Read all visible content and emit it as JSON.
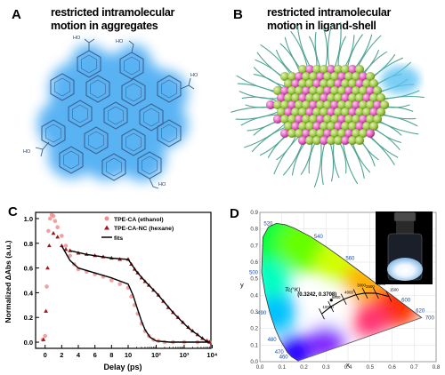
{
  "panelA": {
    "label": "A",
    "title_line1": "restricted intramolecular",
    "title_line2": "motion in aggregates",
    "group_label": "HO"
  },
  "panelB": {
    "label": "B",
    "title_line1": "restricted intramolecular",
    "title_line2": "motion in ligand-shell"
  },
  "panelC": {
    "label": "C",
    "chart_data": {
      "type": "scatter",
      "xlabel": "Delay (ps)",
      "ylabel": "Normalized ΔAbs (a.u.)",
      "ylim": [
        -0.05,
        1.05
      ],
      "x_ticks_linear": [
        "0",
        "2",
        "4",
        "6",
        "8",
        "10"
      ],
      "x_ticks_log": [
        "10²",
        "10³",
        "10⁴"
      ],
      "y_ticks": [
        "0.0",
        "0.2",
        "0.4",
        "0.6",
        "0.8",
        "1.0"
      ],
      "legend": [
        "TPE-CA (ethanol)",
        "TPE-CA-NC (hexane)",
        "fits"
      ],
      "series": [
        {
          "name": "TPE-CA (ethanol)",
          "color": "#f08f8f",
          "points": [
            [
              -0.3,
              0.02
            ],
            [
              0,
              0.05
            ],
            [
              0.2,
              0.45
            ],
            [
              0.4,
              0.9
            ],
            [
              0.6,
              1.0
            ],
            [
              0.8,
              1.03
            ],
            [
              1.0,
              1.02
            ],
            [
              1.2,
              0.98
            ],
            [
              1.5,
              0.93
            ],
            [
              2,
              0.86
            ],
            [
              2.5,
              0.78
            ],
            [
              3,
              0.7
            ],
            [
              3.5,
              0.63
            ],
            [
              4,
              0.59
            ],
            [
              5,
              0.57
            ],
            [
              6,
              0.55
            ],
            [
              7,
              0.53
            ],
            [
              8,
              0.5
            ],
            [
              9,
              0.47
            ],
            [
              10,
              0.44
            ],
            [
              13,
              0.37
            ],
            [
              17,
              0.3
            ],
            [
              22,
              0.23
            ],
            [
              30,
              0.15
            ],
            [
              40,
              0.09
            ],
            [
              55,
              0.05
            ],
            [
              80,
              0.02
            ],
            [
              120,
              0.01
            ],
            [
              200,
              0.0
            ],
            [
              400,
              0.0
            ],
            [
              1000,
              0.0
            ],
            [
              3000,
              0.0
            ],
            [
              8000,
              0.0
            ]
          ]
        },
        {
          "name": "TPE-CA-NC (hexane)",
          "color": "#a0141c",
          "points": [
            [
              -0.2,
              0.02
            ],
            [
              0.1,
              0.25
            ],
            [
              0.3,
              0.6
            ],
            [
              0.5,
              0.78
            ],
            [
              1,
              0.88
            ],
            [
              1.5,
              0.85
            ],
            [
              2,
              0.78
            ],
            [
              2.5,
              0.75
            ],
            [
              3,
              0.74
            ],
            [
              4,
              0.72
            ],
            [
              5,
              0.71
            ],
            [
              6,
              0.7
            ],
            [
              7,
              0.69
            ],
            [
              8,
              0.68
            ],
            [
              9,
              0.67
            ],
            [
              10,
              0.67
            ],
            [
              13,
              0.63
            ],
            [
              17,
              0.59
            ],
            [
              22,
              0.56
            ],
            [
              30,
              0.52
            ],
            [
              40,
              0.49
            ],
            [
              55,
              0.46
            ],
            [
              80,
              0.42
            ],
            [
              120,
              0.38
            ],
            [
              180,
              0.33
            ],
            [
              270,
              0.28
            ],
            [
              400,
              0.24
            ],
            [
              600,
              0.2
            ],
            [
              900,
              0.16
            ],
            [
              1400,
              0.12
            ],
            [
              2000,
              0.09
            ],
            [
              3000,
              0.06
            ],
            [
              4500,
              0.03
            ],
            [
              6500,
              0.01
            ],
            [
              8000,
              0.0
            ]
          ]
        }
      ],
      "fits": [
        {
          "name": "fit-ethanol",
          "points": [
            [
              2,
              0.78
            ],
            [
              3,
              0.66
            ],
            [
              4,
              0.6
            ],
            [
              6,
              0.56
            ],
            [
              8,
              0.52
            ],
            [
              10,
              0.47
            ],
            [
              15,
              0.38
            ],
            [
              20,
              0.29
            ],
            [
              30,
              0.17
            ],
            [
              40,
              0.1
            ],
            [
              60,
              0.04
            ],
            [
              100,
              0.01
            ],
            [
              300,
              0.0
            ],
            [
              8000,
              0.0
            ]
          ]
        },
        {
          "name": "fit-hexane",
          "points": [
            [
              3,
              0.74
            ],
            [
              5,
              0.71
            ],
            [
              8,
              0.68
            ],
            [
              10,
              0.67
            ],
            [
              20,
              0.57
            ],
            [
              50,
              0.47
            ],
            [
              100,
              0.4
            ],
            [
              200,
              0.32
            ],
            [
              400,
              0.24
            ],
            [
              800,
              0.17
            ],
            [
              1500,
              0.11
            ],
            [
              3000,
              0.06
            ],
            [
              6000,
              0.01
            ],
            [
              8000,
              0.0
            ]
          ]
        }
      ]
    }
  },
  "panelD": {
    "label": "D",
    "chart_data": {
      "type": "scatter",
      "title": "",
      "xlabel": "x",
      "ylabel": "y",
      "xlim": [
        0.0,
        0.8
      ],
      "ylim": [
        0.0,
        0.9
      ],
      "x_ticks": [
        "0.0",
        "0.1",
        "0.2",
        "0.3",
        "0.4",
        "0.5",
        "0.6",
        "0.7",
        "0.8"
      ],
      "y_ticks": [
        "0.0",
        "0.1",
        "0.2",
        "0.3",
        "0.4",
        "0.5",
        "0.6",
        "0.7",
        "0.8",
        "0.9"
      ],
      "wavelength_labels": [
        {
          "label": "520",
          "x": 0.0743,
          "y": 0.8338
        },
        {
          "label": "540",
          "x": 0.2296,
          "y": 0.7543
        },
        {
          "label": "560",
          "x": 0.3731,
          "y": 0.6245
        },
        {
          "label": "580",
          "x": 0.5125,
          "y": 0.4866
        },
        {
          "label": "600",
          "x": 0.627,
          "y": 0.3725
        },
        {
          "label": "620",
          "x": 0.6915,
          "y": 0.3083
        },
        {
          "label": "700",
          "x": 0.7347,
          "y": 0.2653
        },
        {
          "label": "500",
          "x": 0.0082,
          "y": 0.5384
        },
        {
          "label": "490",
          "x": 0.0454,
          "y": 0.295
        },
        {
          "label": "480",
          "x": 0.0913,
          "y": 0.1327
        },
        {
          "label": "470",
          "x": 0.1241,
          "y": 0.0578
        },
        {
          "label": "460",
          "x": 0.144,
          "y": 0.0297
        }
      ],
      "locus_label": "Tc(°K)",
      "temperature_labels": [
        "10000",
        "6000",
        "4000",
        "3000",
        "2500",
        "2000",
        "1500"
      ],
      "point": {
        "x": 0.3242,
        "y": 0.3708,
        "label": "(0.3242, 0.3708)"
      }
    }
  }
}
